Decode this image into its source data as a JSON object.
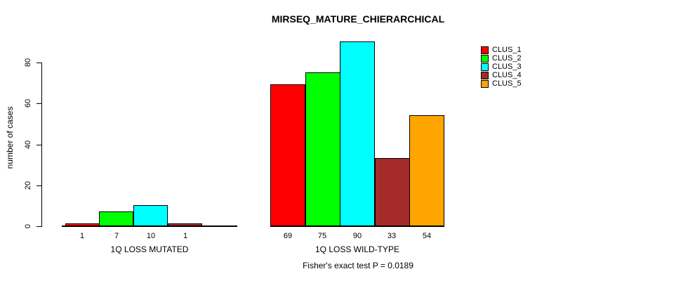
{
  "chart_data": {
    "type": "bar",
    "title": "MIRSEQ_MATURE_CHIERARCHICAL",
    "ylabel": "number of cases",
    "xlabel": "",
    "ylim": [
      0,
      90
    ],
    "yticks": [
      0,
      20,
      40,
      60,
      80
    ],
    "grid": false,
    "legend_position": "top-right",
    "bar_value_labels_shown": true,
    "categories": [
      "1Q LOSS MUTATED",
      "1Q LOSS WILD-TYPE"
    ],
    "series": [
      {
        "name": "CLUS_1",
        "color": "#FF0000",
        "values": [
          1,
          69
        ]
      },
      {
        "name": "CLUS_2",
        "color": "#00FF00",
        "values": [
          7,
          75
        ]
      },
      {
        "name": "CLUS_3",
        "color": "#00FFFF",
        "values": [
          10,
          90
        ]
      },
      {
        "name": "CLUS_4",
        "color": "#A52A2A",
        "values": [
          1,
          33
        ]
      },
      {
        "name": "CLUS_5",
        "color": "#FFA500",
        "values": [
          0,
          54
        ]
      }
    ],
    "annotation": "Fisher's exact test P = 0.0189"
  },
  "colors": {
    "axis": "#000000",
    "text": "#000000",
    "background": "#FFFFFF"
  }
}
